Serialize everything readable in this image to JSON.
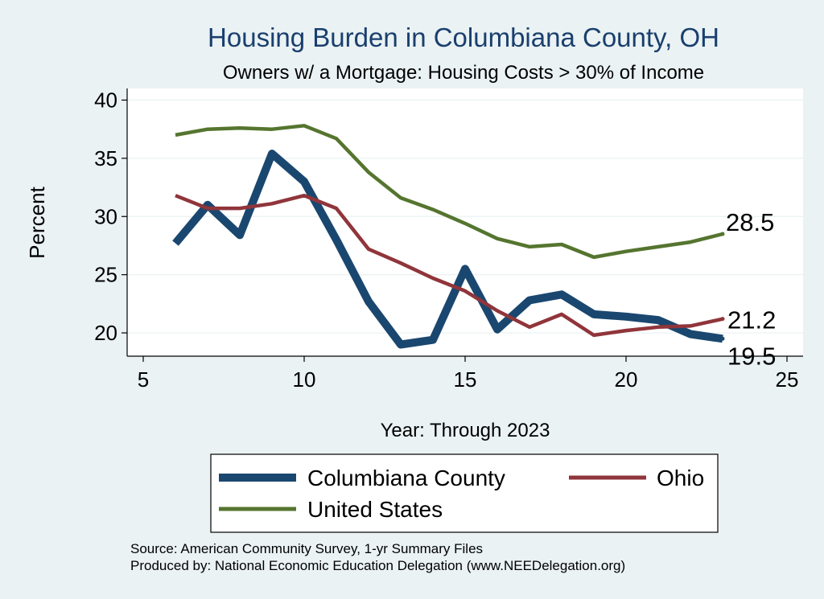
{
  "chart_data": {
    "type": "line",
    "title": "Housing Burden in Columbiana County, OH",
    "subtitle": "Owners w/ a Mortgage: Housing Costs > 30% of Income",
    "xlabel": "Year: Through 2023",
    "ylabel": "Percent",
    "xlim": [
      4.5,
      25.5
    ],
    "ylim": [
      18,
      41
    ],
    "x_ticks": [
      5,
      10,
      15,
      20,
      25
    ],
    "y_ticks": [
      20,
      25,
      30,
      35,
      40
    ],
    "grid": true,
    "series": [
      {
        "name": "Columbiana County",
        "color": "#1a476f",
        "x": [
          6,
          7,
          8,
          9,
          10,
          11,
          12,
          13,
          14,
          15,
          16,
          17,
          18,
          19,
          20,
          21,
          22,
          23
        ],
        "values": [
          27.7,
          31.0,
          28.4,
          35.4,
          33.0,
          28.0,
          22.7,
          19.0,
          19.4,
          25.5,
          20.3,
          22.8,
          23.3,
          21.6,
          21.4,
          21.1,
          19.9,
          19.5
        ],
        "end_label": "19.5"
      },
      {
        "name": "Ohio",
        "color": "#90353b",
        "x": [
          6,
          7,
          8,
          9,
          10,
          11,
          12,
          13,
          14,
          15,
          16,
          17,
          18,
          19,
          20,
          21,
          22,
          23
        ],
        "values": [
          31.8,
          30.7,
          30.7,
          31.1,
          31.8,
          30.7,
          27.2,
          26.0,
          24.7,
          23.6,
          21.9,
          20.5,
          21.6,
          19.8,
          20.2,
          20.5,
          20.6,
          21.2
        ],
        "end_label": "21.2"
      },
      {
        "name": "United States",
        "color": "#55752f",
        "x": [
          6,
          7,
          8,
          9,
          10,
          11,
          12,
          13,
          14,
          15,
          16,
          17,
          18,
          19,
          20,
          21,
          22,
          23
        ],
        "values": [
          37.0,
          37.5,
          37.6,
          37.5,
          37.8,
          36.7,
          33.8,
          31.6,
          30.6,
          29.4,
          28.1,
          27.4,
          27.6,
          26.5,
          27.0,
          27.4,
          27.8,
          28.5
        ],
        "end_label": "28.5"
      }
    ]
  },
  "footer": {
    "source": "Source: American Community Survey, 1-yr Summary Files",
    "produced": "Produced by: National Economic Education Delegation (www.NEEDelegation.org)"
  }
}
